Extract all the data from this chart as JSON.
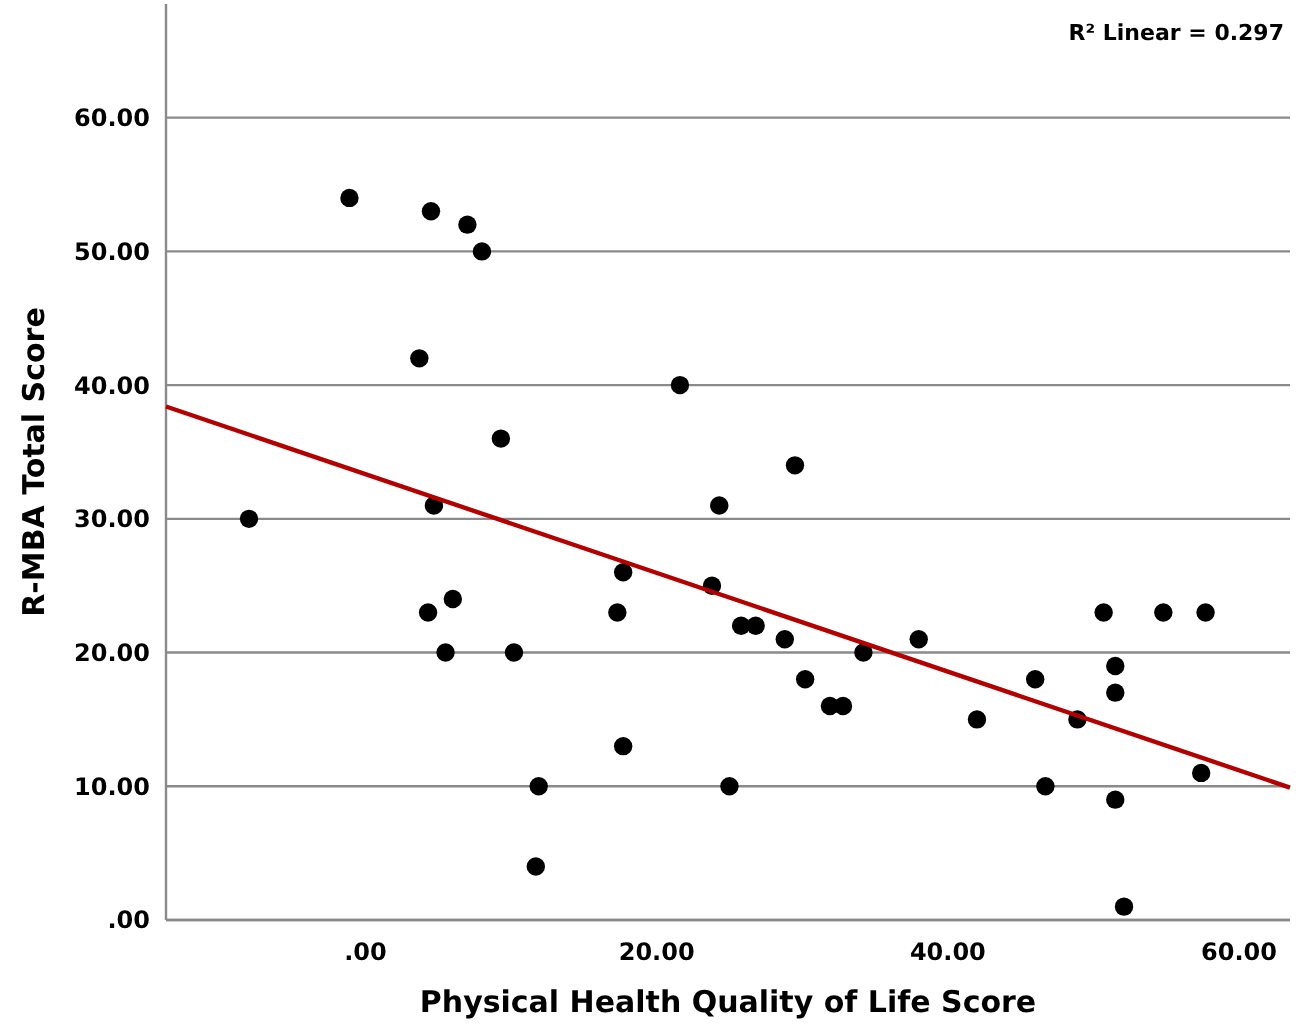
{
  "chart_data": {
    "type": "scatter",
    "xlabel": "Physical Health Quality of Life Score",
    "ylabel": "R-MBA Total Score",
    "annotations": [
      "R² Linear = 0.297"
    ],
    "xlim": [
      -13.7,
      63.5
    ],
    "ylim": [
      0,
      68.5
    ],
    "xticks": [
      {
        "value": 0,
        "label": ".00"
      },
      {
        "value": 20,
        "label": "20.00"
      },
      {
        "value": 40,
        "label": "40.00"
      },
      {
        "value": 60,
        "label": "60.00"
      }
    ],
    "yticks": [
      {
        "value": 0,
        "label": ".00"
      },
      {
        "value": 10,
        "label": "10.00"
      },
      {
        "value": 20,
        "label": "20.00"
      },
      {
        "value": 30,
        "label": "30.00"
      },
      {
        "value": 40,
        "label": "40.00"
      },
      {
        "value": 50,
        "label": "50.00"
      },
      {
        "value": 60,
        "label": "60.00"
      }
    ],
    "grid": "y",
    "marker": "circle",
    "series": [
      {
        "color": "#000000",
        "x": [
          -8.0,
          -1.1,
          4.5,
          7.0,
          8.0,
          3.7,
          9.3,
          4.7,
          4.3,
          6.0,
          5.5,
          10.2,
          11.9,
          11.7,
          21.6,
          29.5,
          24.3,
          17.7,
          23.8,
          17.3,
          25.8,
          26.8,
          28.8,
          30.2,
          31.9,
          32.8,
          34.2,
          38.0,
          17.7,
          25.0,
          42.0,
          46.0,
          46.7,
          48.9,
          50.7,
          54.8,
          57.7,
          51.5,
          51.5,
          57.4,
          51.5,
          52.1
        ],
        "values": [
          30,
          54,
          53,
          52,
          50,
          42,
          36,
          31,
          23,
          24,
          20,
          20,
          10,
          4,
          40,
          34,
          31,
          26,
          25,
          23,
          22,
          22,
          21,
          18,
          16,
          16,
          20,
          21,
          13,
          10,
          15,
          18,
          10,
          15,
          23,
          23,
          23,
          19,
          17,
          11,
          9,
          1
        ]
      },
      {
        "type": "line",
        "color": "#b30000",
        "x": [
          -13.7,
          63.5
        ],
        "values": [
          38.4,
          9.9
        ],
        "marker": "none",
        "line_style": "solid"
      }
    ]
  }
}
